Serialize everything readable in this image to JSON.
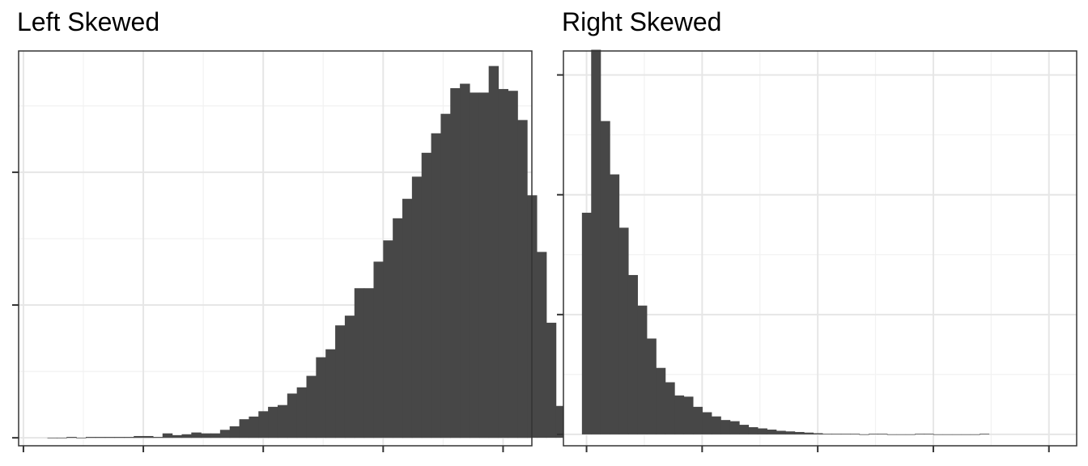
{
  "colors": {
    "bar_fill": "#474747",
    "panel_border": "#333333",
    "grid_major": "#e6e6e6",
    "grid_minor": "#f2f2f2",
    "background": "#ffffff"
  },
  "chart_data": [
    {
      "type": "bar",
      "variant": "histogram",
      "title": "Left Skewed",
      "xlabel": "",
      "ylabel": "",
      "tick_labels_visible": false,
      "grid": true,
      "legend": "none",
      "bin_start": 0.0,
      "bin_width": 0.02,
      "xlim": [
        -0.06,
        1.01
      ],
      "ylim": [
        -9,
        437
      ],
      "x_major_breaks": [
        -0.05,
        0.2,
        0.45,
        0.7,
        0.95
      ],
      "y_major_breaks": [
        0,
        150,
        300
      ],
      "values": [
        0,
        0,
        1,
        0,
        1,
        1,
        1,
        1,
        1,
        2,
        2,
        1,
        5,
        3,
        4,
        6,
        5,
        5,
        9,
        13,
        21,
        24,
        30,
        35,
        37,
        50,
        57,
        70,
        91,
        100,
        127,
        138,
        169,
        169,
        199,
        223,
        248,
        270,
        295,
        322,
        344,
        366,
        395,
        400,
        390,
        390,
        420,
        394,
        392,
        359,
        274,
        210,
        130,
        36,
        1
      ]
    },
    {
      "type": "bar",
      "variant": "histogram",
      "title": "Right Skewed",
      "xlabel": "",
      "ylabel": "",
      "tick_labels_visible": false,
      "grid": true,
      "legend": "none",
      "bin_start": -0.01,
      "bin_width": 0.02,
      "xlim": [
        -0.05,
        1.06
      ],
      "ylim": [
        -19,
        640
      ],
      "x_major_breaks": [
        0,
        0.25,
        0.5,
        0.75,
        1.0
      ],
      "y_major_breaks": [
        0,
        200,
        400,
        600
      ],
      "values": [
        370,
        642,
        523,
        434,
        345,
        266,
        215,
        160,
        111,
        87,
        65,
        63,
        46,
        37,
        30,
        24,
        22,
        16,
        12,
        10,
        8,
        6,
        5,
        4,
        3,
        2,
        1,
        1,
        1,
        1,
        0,
        1,
        1,
        0,
        0,
        0,
        1,
        1,
        0,
        0,
        0,
        0,
        0,
        1
      ]
    }
  ]
}
